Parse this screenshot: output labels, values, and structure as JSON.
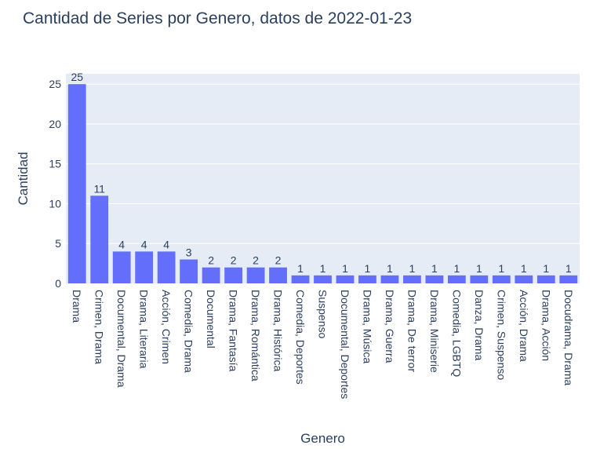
{
  "chart_data": {
    "type": "bar",
    "title": "Cantidad de Series por Genero, datos de 2022-01-23",
    "xlabel": "Genero",
    "ylabel": "Cantidad",
    "categories": [
      "Drama",
      "Crimen, Drama",
      "Documental, Drama",
      "Drama, Literaria",
      "Acción, Crimen",
      "Comedia, Drama",
      "Documental",
      "Drama, Fantasía",
      "Drama, Romántica",
      "Drama, Histórica",
      "Comedia, Deportes",
      "Suspenso",
      "Documental, Deportes",
      "Drama, Música",
      "Drama, Guerra",
      "Drama, De terror",
      "Drama, Miniserie",
      "Comedia, LGBTQ",
      "Danza, Drama",
      "Crimen, Suspenso",
      "Acción, Drama",
      "Drama, Acción",
      "Docudrama, Drama"
    ],
    "values": [
      25,
      11,
      4,
      4,
      4,
      3,
      2,
      2,
      2,
      2,
      1,
      1,
      1,
      1,
      1,
      1,
      1,
      1,
      1,
      1,
      1,
      1,
      1
    ],
    "yticks": [
      0,
      5,
      10,
      15,
      20,
      25
    ],
    "ylim": [
      0,
      26.3
    ],
    "grid": true,
    "bar_color": "#636efa",
    "plot_bg": "#e5ecf6"
  }
}
